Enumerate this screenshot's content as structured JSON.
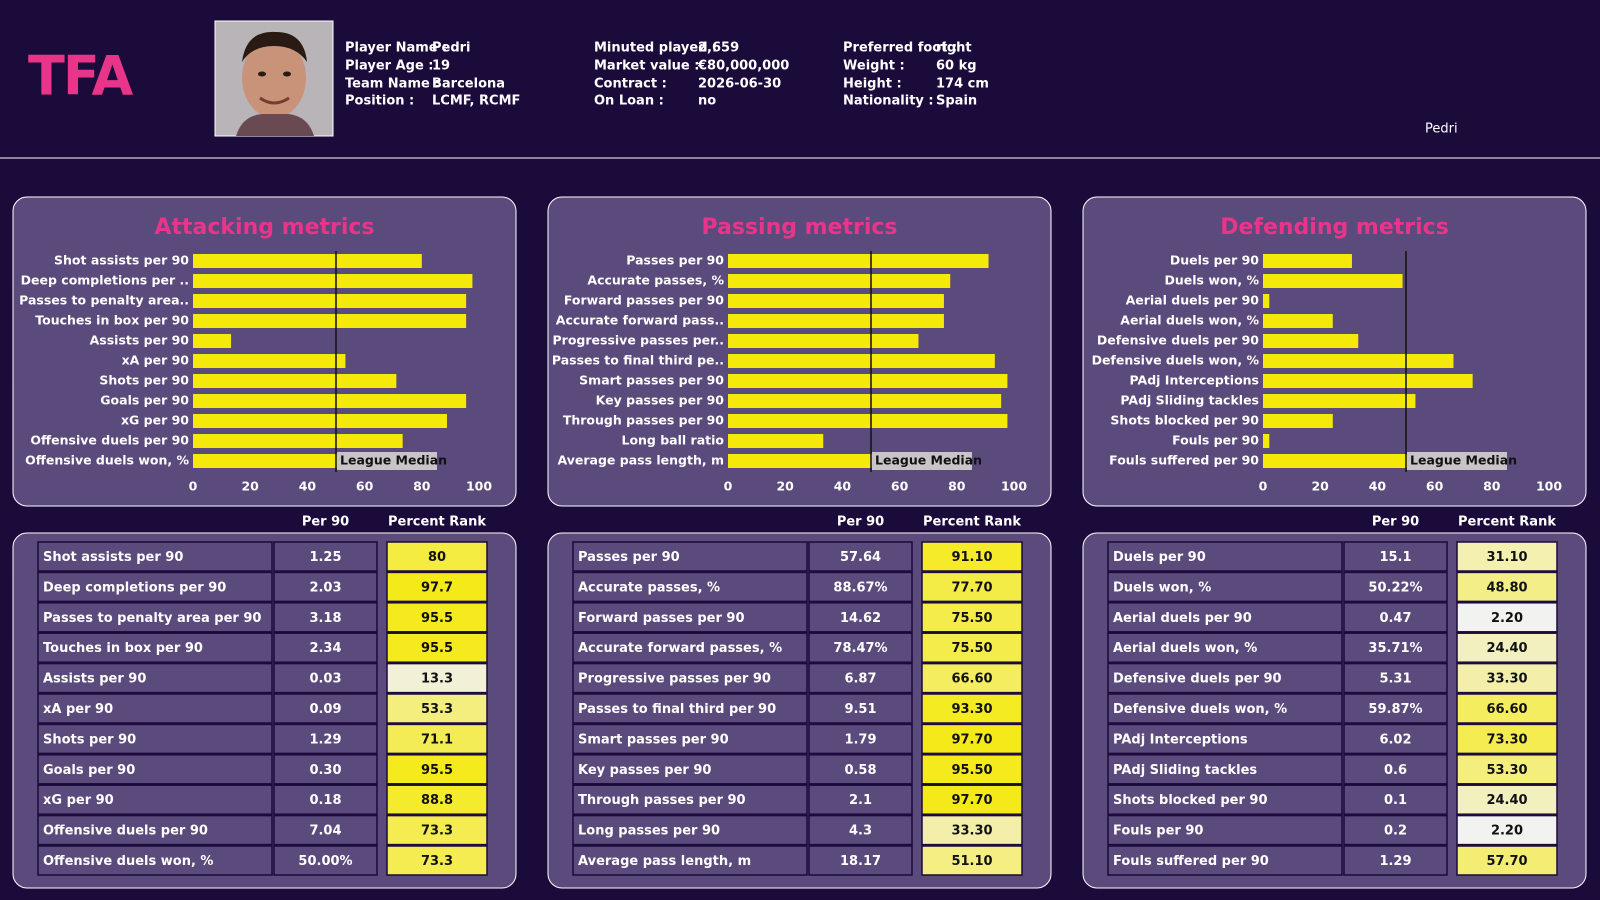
{
  "header": {
    "logo": "TFA",
    "caption": "Pedri",
    "info": [
      {
        "label": "Player Name :",
        "value": "Pedri"
      },
      {
        "label": "Player Age :",
        "value": "19"
      },
      {
        "label": "Team Name :",
        "value": "Barcelona"
      },
      {
        "label": "Position :",
        "value": "LCMF, RCMF"
      },
      {
        "label": "Minuted played :",
        "value": "2,659"
      },
      {
        "label": "Market value :",
        "value": "€80,000,000"
      },
      {
        "label": "Contract :",
        "value": "2026-06-30"
      },
      {
        "label": "On Loan :",
        "value": "no"
      },
      {
        "label": "Preferred foot :",
        "value": "right"
      },
      {
        "label": "Weight :",
        "value": "60 kg"
      },
      {
        "label": "Height :",
        "value": "174 cm"
      },
      {
        "label": "Nationality :",
        "value": "Spain"
      }
    ]
  },
  "chart_data": [
    {
      "type": "bar",
      "orientation": "horizontal",
      "title": "Attacking metrics",
      "categories": [
        "Shot assists per 90",
        "Deep completions per ..",
        "Passes to penalty area..",
        "Touches in box per 90",
        "Assists per 90",
        "xA per 90",
        "Shots per 90",
        "Goals per 90",
        "xG per 90",
        "Offensive duels per 90",
        "Offensive duels won, %"
      ],
      "values": [
        80,
        97.7,
        95.5,
        95.5,
        13.3,
        53.3,
        71.1,
        95.5,
        88.8,
        73.3,
        73.3
      ],
      "color": "#f5e90a",
      "xlim": [
        0,
        100
      ],
      "xticks": [
        0,
        20,
        40,
        60,
        80,
        100
      ],
      "reference_line": {
        "value": 50,
        "label": "League Median"
      }
    },
    {
      "type": "bar",
      "orientation": "horizontal",
      "title": "Passing metrics",
      "categories": [
        "Passes per 90",
        "Accurate passes, %",
        "Forward passes per 90",
        "Accurate forward pass..",
        "Progressive passes per..",
        "Passes to final third pe..",
        "Smart passes per 90",
        "Key passes per 90",
        "Through passes per 90",
        "Long ball ratio",
        "Average pass length, m"
      ],
      "values": [
        91.1,
        77.7,
        75.5,
        75.5,
        66.6,
        93.3,
        97.7,
        95.5,
        97.7,
        33.3,
        51.1
      ],
      "color": "#f5e90a",
      "xlim": [
        0,
        100
      ],
      "xticks": [
        0,
        20,
        40,
        60,
        80,
        100
      ],
      "reference_line": {
        "value": 50,
        "label": "League Median"
      }
    },
    {
      "type": "bar",
      "orientation": "horizontal",
      "title": "Defending metrics",
      "categories": [
        "Duels per 90",
        "Duels won, %",
        "Aerial duels per 90",
        "Aerial duels won, %",
        "Defensive duels per 90",
        "Defensive duels won, %",
        "PAdj Interceptions",
        "PAdj Sliding tackles",
        "Shots blocked per 90",
        "Fouls per 90",
        "Fouls suffered per 90"
      ],
      "values": [
        31.1,
        48.8,
        2.2,
        24.4,
        33.3,
        66.6,
        73.3,
        53.3,
        24.4,
        2.2,
        57.7
      ],
      "color": "#f5e90a",
      "xlim": [
        0,
        100
      ],
      "xticks": [
        0,
        20,
        40,
        60,
        80,
        100
      ],
      "reference_line": {
        "value": 50,
        "label": "League Median"
      }
    }
  ],
  "tables": [
    {
      "columns": [
        "Per 90",
        "Percent Rank"
      ],
      "rows": [
        [
          "Shot assists per 90",
          "1.25",
          "80"
        ],
        [
          "Deep completions per 90",
          "2.03",
          "97.7"
        ],
        [
          "Passes to penalty area per 90",
          "3.18",
          "95.5"
        ],
        [
          "Touches in box per 90",
          "2.34",
          "95.5"
        ],
        [
          "Assists per 90",
          "0.03",
          "13.3"
        ],
        [
          "xA per 90",
          "0.09",
          "53.3"
        ],
        [
          "Shots per 90",
          "1.29",
          "71.1"
        ],
        [
          "Goals per 90",
          "0.30",
          "95.5"
        ],
        [
          "xG per 90",
          "0.18",
          "88.8"
        ],
        [
          "Offensive duels per 90",
          "7.04",
          "73.3"
        ],
        [
          "Offensive duels won, %",
          "50.00%",
          "73.3"
        ]
      ]
    },
    {
      "columns": [
        "Per 90",
        "Percent Rank"
      ],
      "rows": [
        [
          "Passes per 90",
          "57.64",
          "91.10"
        ],
        [
          "Accurate passes, %",
          "88.67%",
          "77.70"
        ],
        [
          "Forward passes per 90",
          "14.62",
          "75.50"
        ],
        [
          "Accurate forward passes, %",
          "78.47%",
          "75.50"
        ],
        [
          "Progressive passes per 90",
          "6.87",
          "66.60"
        ],
        [
          "Passes to final third per 90",
          "9.51",
          "93.30"
        ],
        [
          "Smart passes per 90",
          "1.79",
          "97.70"
        ],
        [
          "Key passes per 90",
          "0.58",
          "95.50"
        ],
        [
          "Through passes per 90",
          "2.1",
          "97.70"
        ],
        [
          "Long passes per 90",
          "4.3",
          "33.30"
        ],
        [
          "Average pass length, m",
          "18.17",
          "51.10"
        ]
      ]
    },
    {
      "columns": [
        "Per 90",
        "Percent Rank"
      ],
      "rows": [
        [
          "Duels per 90",
          "15.1",
          "31.10"
        ],
        [
          "Duels won, %",
          "50.22%",
          "48.80"
        ],
        [
          "Aerial duels per 90",
          "0.47",
          "2.20"
        ],
        [
          "Aerial duels won, %",
          "35.71%",
          "24.40"
        ],
        [
          "Defensive duels per 90",
          "5.31",
          "33.30"
        ],
        [
          "Defensive duels won, %",
          "59.87%",
          "66.60"
        ],
        [
          "PAdj Interceptions",
          "6.02",
          "73.30"
        ],
        [
          "PAdj Sliding tackles",
          "0.6",
          "53.30"
        ],
        [
          "Shots blocked per 90",
          "0.1",
          "24.40"
        ],
        [
          "Fouls per 90",
          "0.2",
          "2.20"
        ],
        [
          "Fouls suffered per 90",
          "1.29",
          "57.70"
        ]
      ]
    }
  ]
}
